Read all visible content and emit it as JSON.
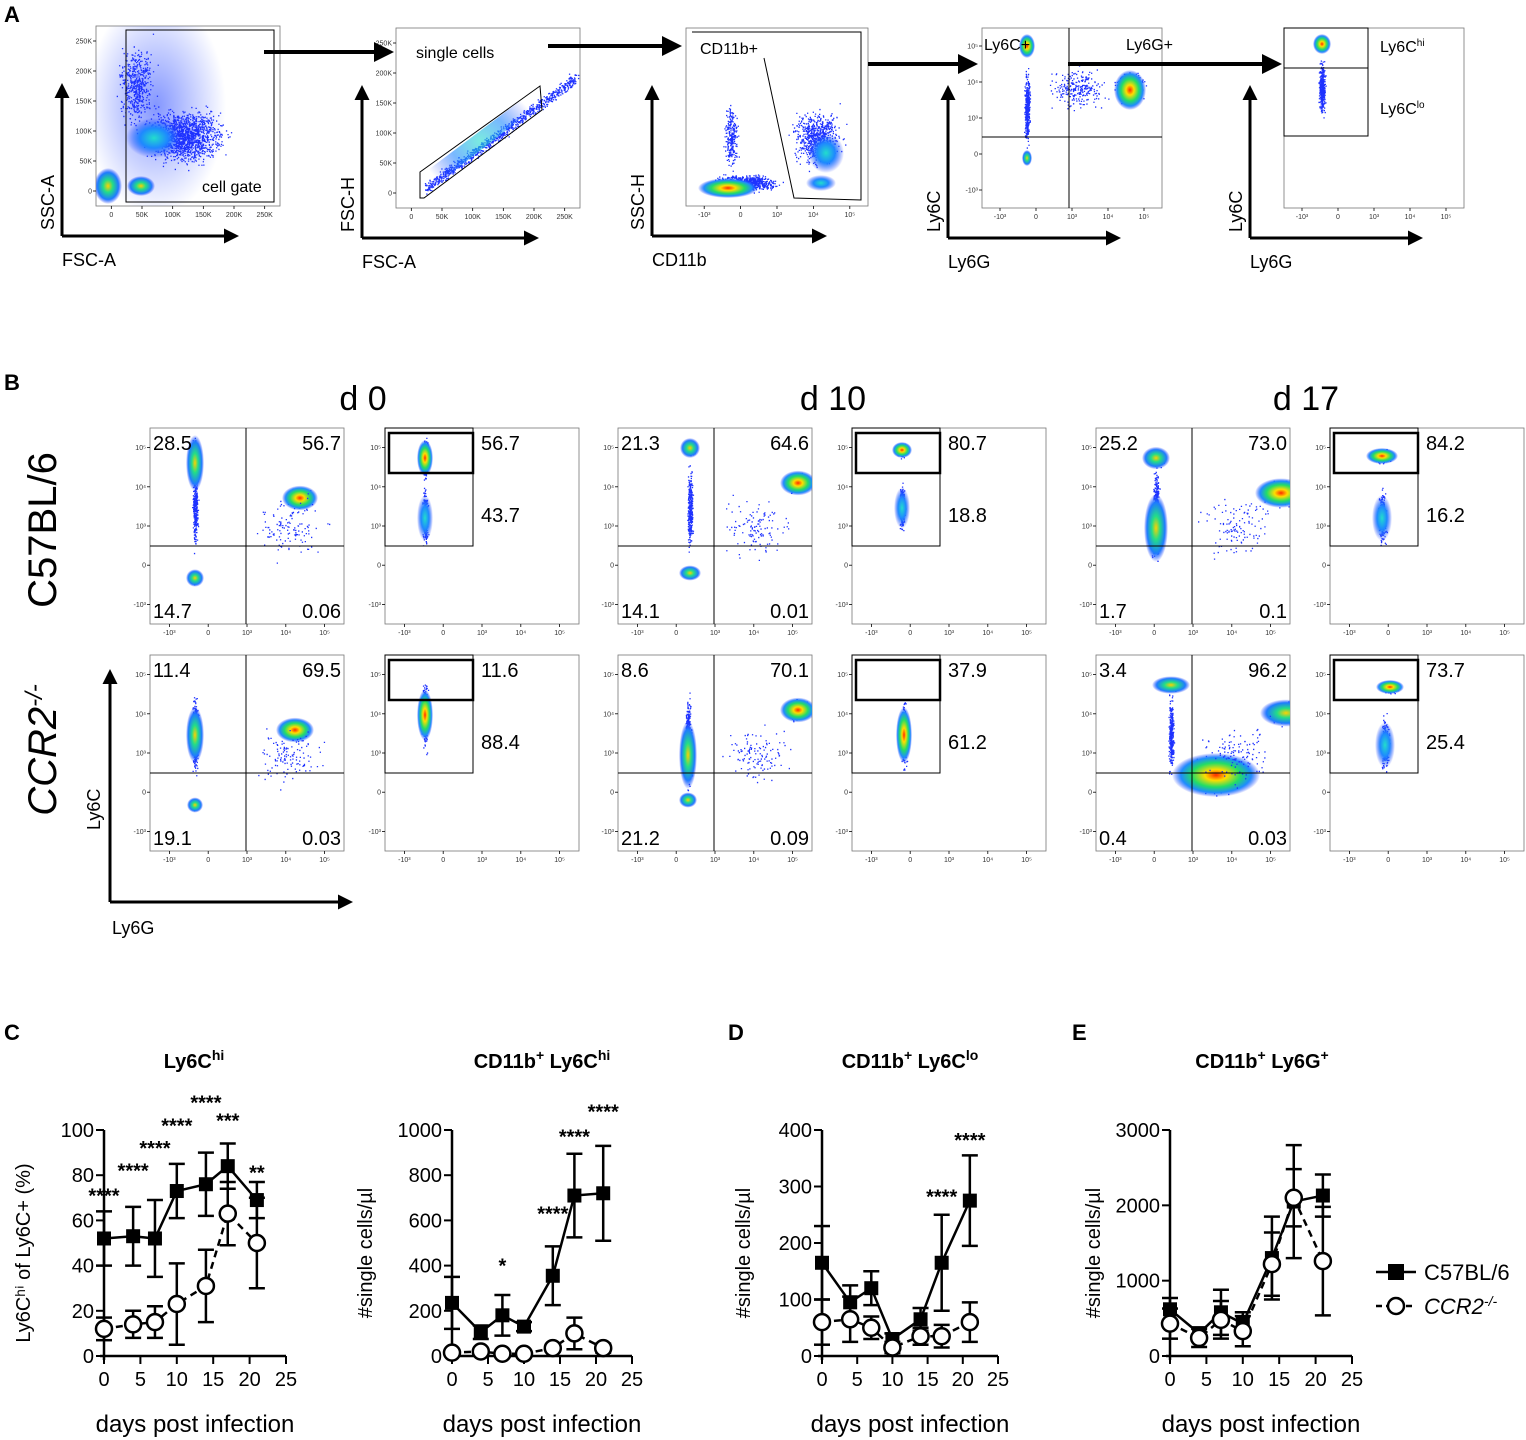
{
  "figure": {
    "panel_labels": {
      "A": "A",
      "B": "B",
      "C": "C",
      "D": "D",
      "E": "E"
    },
    "panel_a": {
      "plots": [
        {
          "x_label": "FSC-A",
          "y_label": "SSC-A",
          "gate_text": "cell gate",
          "ticks": [
            "0",
            "50K",
            "100K",
            "150K",
            "200K",
            "250K"
          ]
        },
        {
          "x_label": "FSC-A",
          "y_label": "FSC-H",
          "gate_text": "single cells",
          "ticks": [
            "0",
            "50K",
            "100K",
            "150K",
            "200K",
            "250K"
          ]
        },
        {
          "x_label": "CD11b",
          "y_label": "SSC-H",
          "gate_text": "CD11b+",
          "ticks": [
            "-10³",
            "0",
            "10³",
            "10⁴",
            "10⁵"
          ]
        },
        {
          "x_label": "Ly6G",
          "y_label": "Ly6C",
          "gate_text": "Ly6C+",
          "gate_text2": "Ly6G+",
          "ticks": [
            "-10³",
            "0",
            "10³",
            "10⁴",
            "10⁵"
          ]
        },
        {
          "x_label": "Ly6G",
          "y_label": "Ly6C",
          "gate_hi": "Ly6C",
          "gate_hi_sup": "hi",
          "gate_lo": "Ly6C",
          "gate_lo_sup": "lo",
          "ticks": [
            "-10³",
            "0",
            "10³",
            "10⁴",
            "10⁵"
          ]
        }
      ]
    },
    "panel_b": {
      "days": [
        "d 0",
        "d 10",
        "d 17"
      ],
      "rows": [
        {
          "label": "C57BL/6",
          "sup": ""
        },
        {
          "label": "CCR2",
          "sup": "-/-"
        }
      ],
      "x_label": "Ly6G",
      "y_label": "Ly6C",
      "ticks": [
        "-10³",
        "0",
        "10³",
        "10⁴",
        "10⁵"
      ],
      "quadrants": [
        [
          [
            "28.5",
            "56.7",
            "14.7",
            "0.06"
          ],
          [
            "21.3",
            "64.6",
            "14.1",
            "0.01"
          ],
          [
            "25.2",
            "73.0",
            "1.7",
            "0.1"
          ]
        ],
        [
          [
            "11.4",
            "69.5",
            "19.1",
            "0.03"
          ],
          [
            "8.6",
            "70.1",
            "21.2",
            "0.09"
          ],
          [
            "3.4",
            "96.2",
            "0.4",
            "0.03"
          ]
        ]
      ],
      "ly6c_gates": [
        [
          [
            "56.7",
            "43.7"
          ],
          [
            "80.7",
            "18.8"
          ],
          [
            "84.2",
            "16.2"
          ]
        ],
        [
          [
            "11.6",
            "88.4"
          ],
          [
            "37.9",
            "61.2"
          ],
          [
            "73.7",
            "25.4"
          ]
        ]
      ]
    }
  },
  "legend": {
    "c57": "C57BL/6",
    "ccr2": "CCR2",
    "ccr2_sup": "-/-"
  },
  "chart_data": [
    {
      "type": "line",
      "panel": "C",
      "title": "Ly6C",
      "title_sup": "hi",
      "xlabel": "days post infection",
      "ylabel": "Ly6Cʰⁱ of Ly6C+ (%)",
      "xlim": [
        0,
        25
      ],
      "ylim": [
        0,
        100
      ],
      "xticks": [
        0,
        5,
        10,
        15,
        20,
        25
      ],
      "yticks": [
        0,
        20,
        40,
        60,
        80,
        100
      ],
      "x": [
        0,
        4,
        7,
        10,
        14,
        17,
        21
      ],
      "series": [
        {
          "name": "C57BL/6",
          "values": [
            52,
            53,
            52,
            73,
            76,
            84,
            69
          ],
          "errors": [
            12,
            13,
            17,
            12,
            14,
            10,
            8
          ]
        },
        {
          "name": "CCR2-/-",
          "values": [
            12,
            14,
            15,
            23,
            31,
            63,
            50
          ],
          "errors": [
            5,
            6,
            7,
            18,
            16,
            14,
            20
          ]
        }
      ],
      "annotations": [
        {
          "x": 0,
          "y": 68,
          "text": "****"
        },
        {
          "x": 4,
          "y": 79,
          "text": "****"
        },
        {
          "x": 7,
          "y": 89,
          "text": "****"
        },
        {
          "x": 10,
          "y": 99,
          "text": "****"
        },
        {
          "x": 14,
          "y": 109,
          "text": "****"
        },
        {
          "x": 17,
          "y": 101,
          "text": "***"
        },
        {
          "x": 21,
          "y": 78,
          "text": "**"
        }
      ]
    },
    {
      "type": "line",
      "panel": "C",
      "title": "CD11b",
      "title_sup": "+",
      "title2": " Ly6C",
      "title2_sup": "hi",
      "xlabel": "days post infection",
      "ylabel": "#single cells/µl",
      "xlim": [
        0,
        25
      ],
      "ylim": [
        0,
        1000
      ],
      "xticks": [
        0,
        5,
        10,
        15,
        20,
        25
      ],
      "yticks": [
        0,
        200,
        400,
        600,
        800,
        1000
      ],
      "x": [
        0,
        4,
        7,
        10,
        14,
        17,
        21
      ],
      "series": [
        {
          "name": "C57BL/6",
          "values": [
            235,
            105,
            180,
            130,
            355,
            710,
            720
          ],
          "errors": [
            115,
            30,
            90,
            20,
            130,
            185,
            210
          ]
        },
        {
          "name": "CCR2-/-",
          "values": [
            15,
            20,
            10,
            10,
            35,
            100,
            35
          ],
          "errors": [
            10,
            10,
            8,
            5,
            15,
            70,
            20
          ]
        }
      ],
      "annotations": [
        {
          "x": 7,
          "y": 370,
          "text": "*"
        },
        {
          "x": 14,
          "y": 600,
          "text": "****"
        },
        {
          "x": 17,
          "y": 940,
          "text": "****"
        },
        {
          "x": 21,
          "y": 1050,
          "text": "****"
        }
      ]
    },
    {
      "type": "line",
      "panel": "D",
      "title": "CD11b",
      "title_sup": "+",
      "title2": " Ly6C",
      "title2_sup": "lo",
      "xlabel": "days post infection",
      "ylabel": "#single cells/µl",
      "xlim": [
        0,
        25
      ],
      "ylim": [
        0,
        400
      ],
      "xticks": [
        0,
        5,
        10,
        15,
        20,
        25
      ],
      "yticks": [
        0,
        100,
        200,
        300,
        400
      ],
      "x": [
        0,
        4,
        7,
        10,
        14,
        17,
        21
      ],
      "series": [
        {
          "name": "C57BL/6",
          "values": [
            165,
            95,
            120,
            30,
            65,
            165,
            275
          ],
          "errors": [
            65,
            30,
            30,
            10,
            20,
            85,
            80
          ]
        },
        {
          "name": "CCR2-/-",
          "values": [
            60,
            65,
            50,
            15,
            35,
            35,
            60
          ],
          "errors": [
            40,
            40,
            20,
            10,
            15,
            20,
            35
          ]
        }
      ],
      "annotations": [
        {
          "x": 17,
          "y": 270,
          "text": "****"
        },
        {
          "x": 21,
          "y": 370,
          "text": "****"
        }
      ]
    },
    {
      "type": "line",
      "panel": "E",
      "title": "CD11b",
      "title_sup": "+",
      "title2": " Ly6G",
      "title2_sup": "+",
      "xlabel": "days post infection",
      "ylabel": "#single cells/µl",
      "xlim": [
        0,
        25
      ],
      "ylim": [
        0,
        3000
      ],
      "xticks": [
        0,
        5,
        10,
        15,
        20,
        25
      ],
      "yticks": [
        0,
        1000,
        2000,
        3000
      ],
      "x": [
        0,
        4,
        7,
        10,
        14,
        17,
        21
      ],
      "series": [
        {
          "name": "C57BL/6",
          "values": [
            620,
            300,
            580,
            430,
            1300,
            2050,
            2130
          ],
          "errors": [
            150,
            80,
            300,
            150,
            550,
            750,
            280
          ]
        },
        {
          "name": "CCR2-/-",
          "values": [
            430,
            240,
            480,
            330,
            1220,
            2100,
            1260
          ],
          "errors": [
            200,
            120,
            250,
            200,
            420,
            380,
            720
          ]
        }
      ],
      "annotations": []
    }
  ]
}
